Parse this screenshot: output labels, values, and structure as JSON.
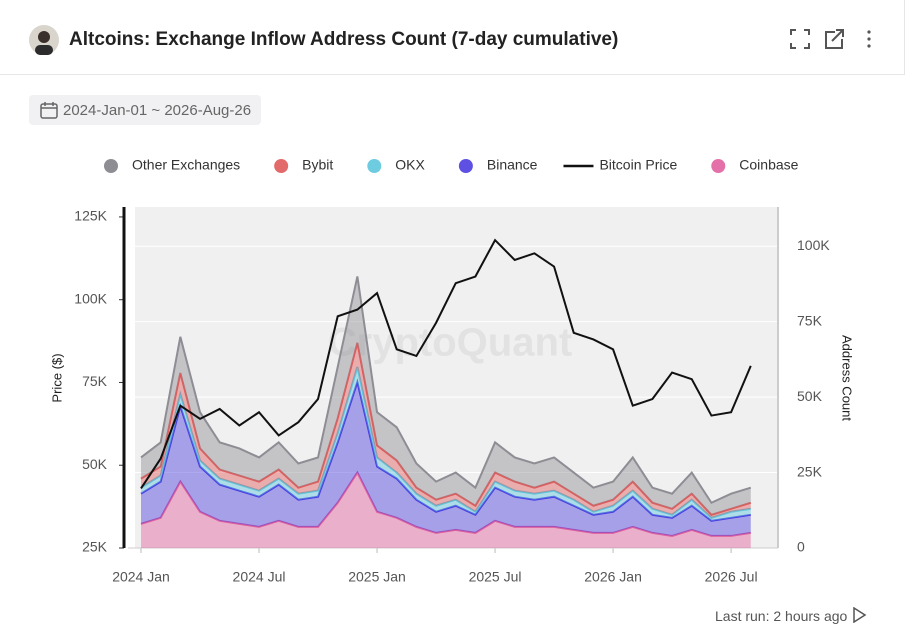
{
  "header": {
    "title": "Altcoins: Exchange Inflow Address Count (7-day cumulative)",
    "date_range": "2024-Jan-01 ~ 2026-Aug-26"
  },
  "footer": {
    "last_run": "Last run: 2 hours ago"
  },
  "chart_data": {
    "type": "area",
    "watermark": "CryptoQuant",
    "ylabel": "Price ($)",
    "y2label": "Address Count",
    "x": [
      "2024-01",
      "2024-02",
      "2024-03",
      "2024-04",
      "2024-05",
      "2024-06",
      "2024-07",
      "2024-08",
      "2024-09",
      "2024-10",
      "2024-11",
      "2024-12",
      "2025-01",
      "2025-02",
      "2025-03",
      "2025-04",
      "2025-05",
      "2025-06",
      "2025-07",
      "2025-08",
      "2025-09",
      "2025-10",
      "2025-11",
      "2025-12",
      "2026-01",
      "2026-02",
      "2026-03",
      "2026-04",
      "2026-05",
      "2026-06",
      "2026-07",
      "2026-08"
    ],
    "xticks": [
      {
        "value": "2024-01",
        "label": "2024 Jan"
      },
      {
        "value": "2024-07",
        "label": "2024 Jul"
      },
      {
        "value": "2025-01",
        "label": "2025 Jan"
      },
      {
        "value": "2025-07",
        "label": "2025 Jul"
      },
      {
        "value": "2026-01",
        "label": "2026 Jan"
      },
      {
        "value": "2026-07",
        "label": "2026 Jul"
      }
    ],
    "ylim": [
      25000,
      128000
    ],
    "yticks": [
      {
        "value": 25000,
        "label": "25K"
      },
      {
        "value": 50000,
        "label": "50K"
      },
      {
        "value": 75000,
        "label": "75K"
      },
      {
        "value": 100000,
        "label": "100K"
      },
      {
        "value": 125000,
        "label": "125K"
      }
    ],
    "y2lim": [
      0,
      113000
    ],
    "y2ticks": [
      0,
      {
        "value": 25000,
        "label": "25K"
      },
      {
        "value": 50000,
        "label": "50K"
      },
      {
        "value": 75000,
        "label": "75K"
      },
      {
        "value": 100000,
        "label": "100K"
      }
    ],
    "grid": true,
    "series": [
      {
        "name": "Other Exchanges",
        "type": "area",
        "axis": "y2",
        "color": "#8f8d94",
        "values": [
          7000,
          8000,
          12000,
          12000,
          9000,
          9000,
          8000,
          9000,
          8000,
          8000,
          17000,
          22000,
          11000,
          11000,
          8000,
          6000,
          7000,
          6000,
          10000,
          8000,
          8000,
          8000,
          7000,
          6000,
          6000,
          8000,
          5000,
          5000,
          7000,
          4000,
          5000,
          5000
        ]
      },
      {
        "name": "Bybit",
        "type": "area",
        "axis": "y2",
        "color": "#e05a5a",
        "values": [
          3000,
          3000,
          7000,
          4000,
          3000,
          3000,
          3000,
          3000,
          2000,
          3000,
          5000,
          8000,
          4000,
          4000,
          2000,
          2000,
          2000,
          2000,
          3000,
          3000,
          2000,
          3000,
          2000,
          2000,
          2000,
          3000,
          2000,
          2000,
          2000,
          1000,
          1000,
          2000
        ]
      },
      {
        "name": "OKX",
        "type": "area",
        "axis": "y2",
        "color": "#5ec6de",
        "values": [
          2000,
          2000,
          4000,
          2000,
          2000,
          2000,
          2000,
          2000,
          2000,
          2000,
          3000,
          5000,
          3000,
          2000,
          2000,
          2000,
          2000,
          1000,
          2000,
          2000,
          2000,
          2000,
          2000,
          1000,
          2000,
          2000,
          2000,
          1000,
          2000,
          1000,
          2000,
          2000
        ]
      },
      {
        "name": "Binance",
        "type": "area",
        "axis": "y2",
        "color": "#4b3de0",
        "values": [
          10000,
          12000,
          25000,
          15000,
          12000,
          11000,
          10000,
          12000,
          9000,
          10000,
          20000,
          30000,
          15000,
          13000,
          9000,
          7000,
          8000,
          6000,
          11000,
          10000,
          9000,
          10000,
          8000,
          6000,
          7000,
          10000,
          6000,
          6000,
          8000,
          5000,
          6000,
          6000
        ]
      },
      {
        "name": "Bitcoin Price",
        "type": "line",
        "axis": "y",
        "color": "#111111",
        "values": [
          43000,
          52000,
          68000,
          64000,
          67000,
          62000,
          66000,
          59000,
          63000,
          70000,
          95000,
          97000,
          102000,
          85000,
          83000,
          93000,
          105000,
          107000,
          118000,
          112000,
          114000,
          110000,
          90000,
          88000,
          85000,
          68000,
          70000,
          78000,
          76000,
          65000,
          66000,
          80000
        ]
      },
      {
        "name": "Coinbase",
        "type": "area",
        "axis": "y2",
        "color": "#e0609e",
        "values": [
          8000,
          10000,
          22000,
          12000,
          9000,
          8000,
          7000,
          9000,
          7000,
          7000,
          15000,
          25000,
          12000,
          10000,
          7000,
          5000,
          6000,
          5000,
          9000,
          7000,
          7000,
          7000,
          6000,
          5000,
          5000,
          7000,
          5000,
          4000,
          6000,
          4000,
          4000,
          5000
        ]
      }
    ]
  }
}
